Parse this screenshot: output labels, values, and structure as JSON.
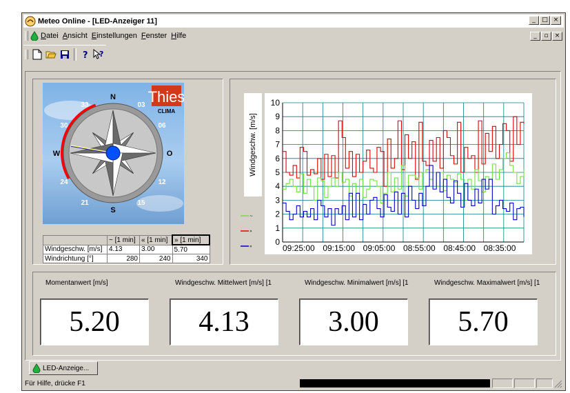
{
  "window": {
    "title": "Meteo Online - [LED-Anzeiger 11]",
    "controls": {
      "minimize": "_",
      "maximize": "□",
      "close": "×",
      "restore": "▫"
    }
  },
  "menu": {
    "items": [
      "Datei",
      "Ansicht",
      "Einstellungen",
      "Fenster",
      "Hilfe"
    ]
  },
  "toolbar": {
    "icons": [
      "new-file-icon",
      "open-folder-icon",
      "save-icon",
      "help-icon",
      "context-help-icon"
    ]
  },
  "compass": {
    "brand": "Thies",
    "brand_sub": "CLIMA",
    "cardinals": {
      "n": "N",
      "o": "O",
      "s": "S",
      "w": "W"
    },
    "ticks": [
      "03",
      "06",
      "12",
      "15",
      "21",
      "24",
      "30",
      "33"
    ],
    "wind_direction_deg": 280,
    "sector_min_deg": 240,
    "sector_max_deg": 340
  },
  "stats_table": {
    "headers": [
      "~ [1 min]",
      "« [1 min]",
      "» [1 min]"
    ],
    "rows": [
      {
        "label": "Windgeschw. [m/s]",
        "values": [
          "4.13",
          "3.00",
          "5.70"
        ]
      },
      {
        "label": "Windrichtung [°]",
        "values": [
          "280",
          "240",
          "340"
        ]
      }
    ]
  },
  "chart_data": {
    "type": "line",
    "ylabel": "Windgeschw. [m/s]",
    "ylim": [
      0,
      10
    ],
    "yticks": [
      "0",
      "1",
      "2",
      "3",
      "4",
      "5",
      "6",
      "7",
      "8",
      "9",
      "10"
    ],
    "xticks": [
      "09:25:00",
      "09:15:00",
      "09:05:00",
      "08:55:00",
      "08:45:00",
      "08:35:00"
    ],
    "grid": true,
    "legend_position": "left",
    "series": [
      {
        "legend_mark": "»",
        "color": "#e00000",
        "values": [
          6.5,
          5.0,
          4.8,
          5.5,
          4.6,
          6.8,
          6.5,
          4.8,
          5.2,
          4.9,
          6.0,
          4.5,
          6.3,
          4.7,
          6.2,
          4.6,
          8.7,
          7.5,
          5.3,
          6.5,
          4.7,
          6.3,
          5.0,
          5.8,
          6.6,
          5.3,
          5.0,
          6.8,
          6.5,
          4.0,
          7.4,
          5.3,
          6.0,
          8.7,
          5.2,
          7.7,
          6.0,
          7.2,
          4.5,
          8.6,
          5.8,
          5.5,
          7.3,
          5.8,
          7.5,
          5.3,
          8.0,
          7.5,
          6.2,
          5.6,
          8.6,
          5.0,
          6.8,
          6.0,
          6.2,
          5.0,
          8.7,
          5.6,
          7.8,
          6.5,
          8.3,
          6.0,
          7.0,
          8.5,
          8.0,
          5.8,
          9.0,
          7.0,
          8.6,
          8.5
        ]
      },
      {
        "legend_mark": "~",
        "color": "#70e040",
        "values": [
          3.8,
          4.2,
          4.5,
          4.0,
          3.6,
          4.9,
          3.5,
          4.5,
          4.0,
          3.0,
          4.6,
          4.4,
          3.2,
          4.0,
          4.6,
          4.0,
          5.0,
          4.3,
          4.5,
          3.3,
          4.2,
          3.5,
          4.5,
          3.2,
          3.8,
          4.5,
          4.4,
          4.0,
          2.8,
          3.5,
          5.0,
          3.6,
          4.6,
          3.8,
          5.5,
          3.3,
          4.8,
          4.8,
          4.6,
          3.8,
          5.0,
          5.2,
          4.5,
          5.0,
          4.0,
          5.0,
          3.7,
          4.8,
          4.5,
          4.3,
          4.9,
          4.5,
          3.0,
          4.5,
          3.8,
          5.2,
          4.4,
          3.6,
          4.7,
          4.5,
          5.6,
          4.5,
          5.2,
          6.0,
          6.4,
          5.5,
          5.0,
          4.2,
          4.7,
          5.2
        ]
      },
      {
        "legend_mark": "«",
        "color": "#0000c0",
        "values": [
          2.8,
          2.2,
          1.6,
          2.0,
          2.6,
          1.8,
          2.2,
          1.8,
          2.4,
          1.6,
          3.0,
          2.6,
          1.8,
          2.4,
          1.2,
          2.4,
          2.0,
          2.6,
          1.6,
          3.5,
          1.8,
          3.5,
          1.6,
          2.7,
          2.0,
          3.0,
          3.2,
          2.4,
          1.8,
          3.4,
          2.5,
          2.2,
          3.6,
          2.0,
          3.5,
          1.8,
          4.0,
          3.0,
          2.4,
          3.5,
          2.6,
          4.0,
          5.5,
          3.8,
          5.0,
          3.6,
          4.5,
          3.2,
          2.8,
          4.4,
          3.5,
          2.5,
          4.2,
          3.0,
          2.6,
          3.8,
          2.8,
          4.5,
          3.8,
          4.5,
          2.0,
          2.6,
          3.0,
          2.4,
          2.2,
          2.8,
          1.6,
          2.4,
          2.5,
          1.8
        ]
      }
    ]
  },
  "values_panel": [
    {
      "label": "Momentanwert [m/s]",
      "value": "5.20"
    },
    {
      "label": "Windgeschw. Mittelwert [m/s] [1",
      "value": "4.13"
    },
    {
      "label": "Windgeschw. Minimalwert [m/s] [1",
      "value": "3.00"
    },
    {
      "label": "Windgeschw. Maximalwert [m/s] [1",
      "value": "5.70"
    }
  ],
  "tabs": [
    {
      "label": "LED-Anzeige..."
    }
  ],
  "statusbar": {
    "text": "Für Hilfe, drücke F1"
  }
}
